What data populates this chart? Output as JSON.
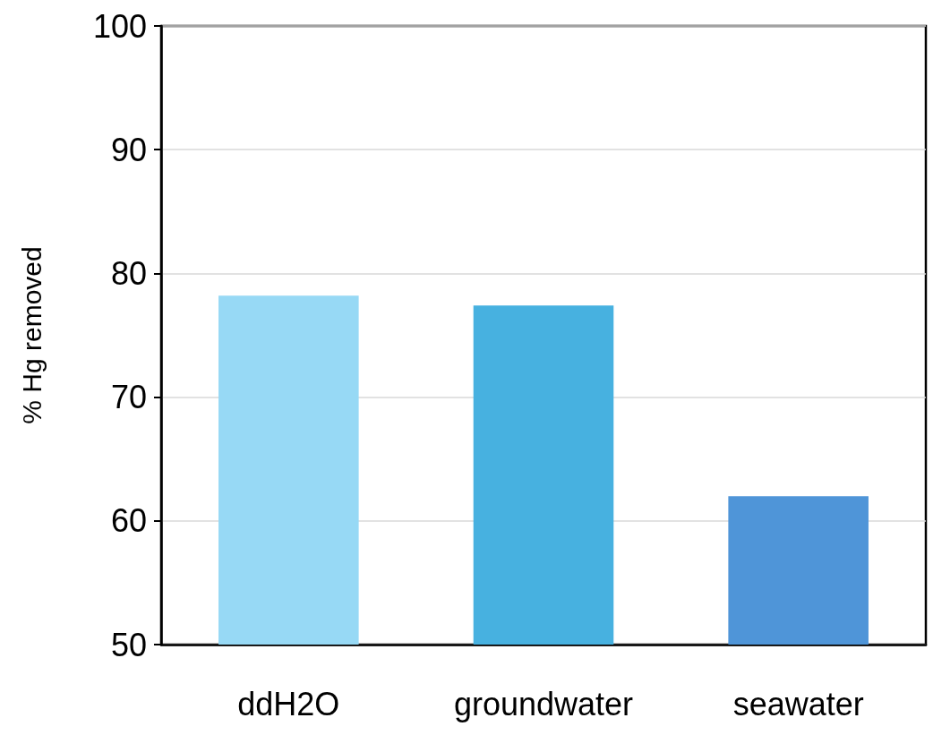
{
  "chart_data": {
    "type": "bar",
    "ylabel": "% Hg removed",
    "categories": [
      "ddH2O",
      "groundwater",
      "seawater"
    ],
    "values": [
      78.2,
      77.4,
      62.0
    ],
    "colors": [
      "#97d9f5",
      "#47b1e0",
      "#4f95d8"
    ],
    "ylim": [
      50,
      100
    ],
    "yticks": [
      50,
      60,
      70,
      80,
      90,
      100
    ],
    "grid": "y"
  }
}
